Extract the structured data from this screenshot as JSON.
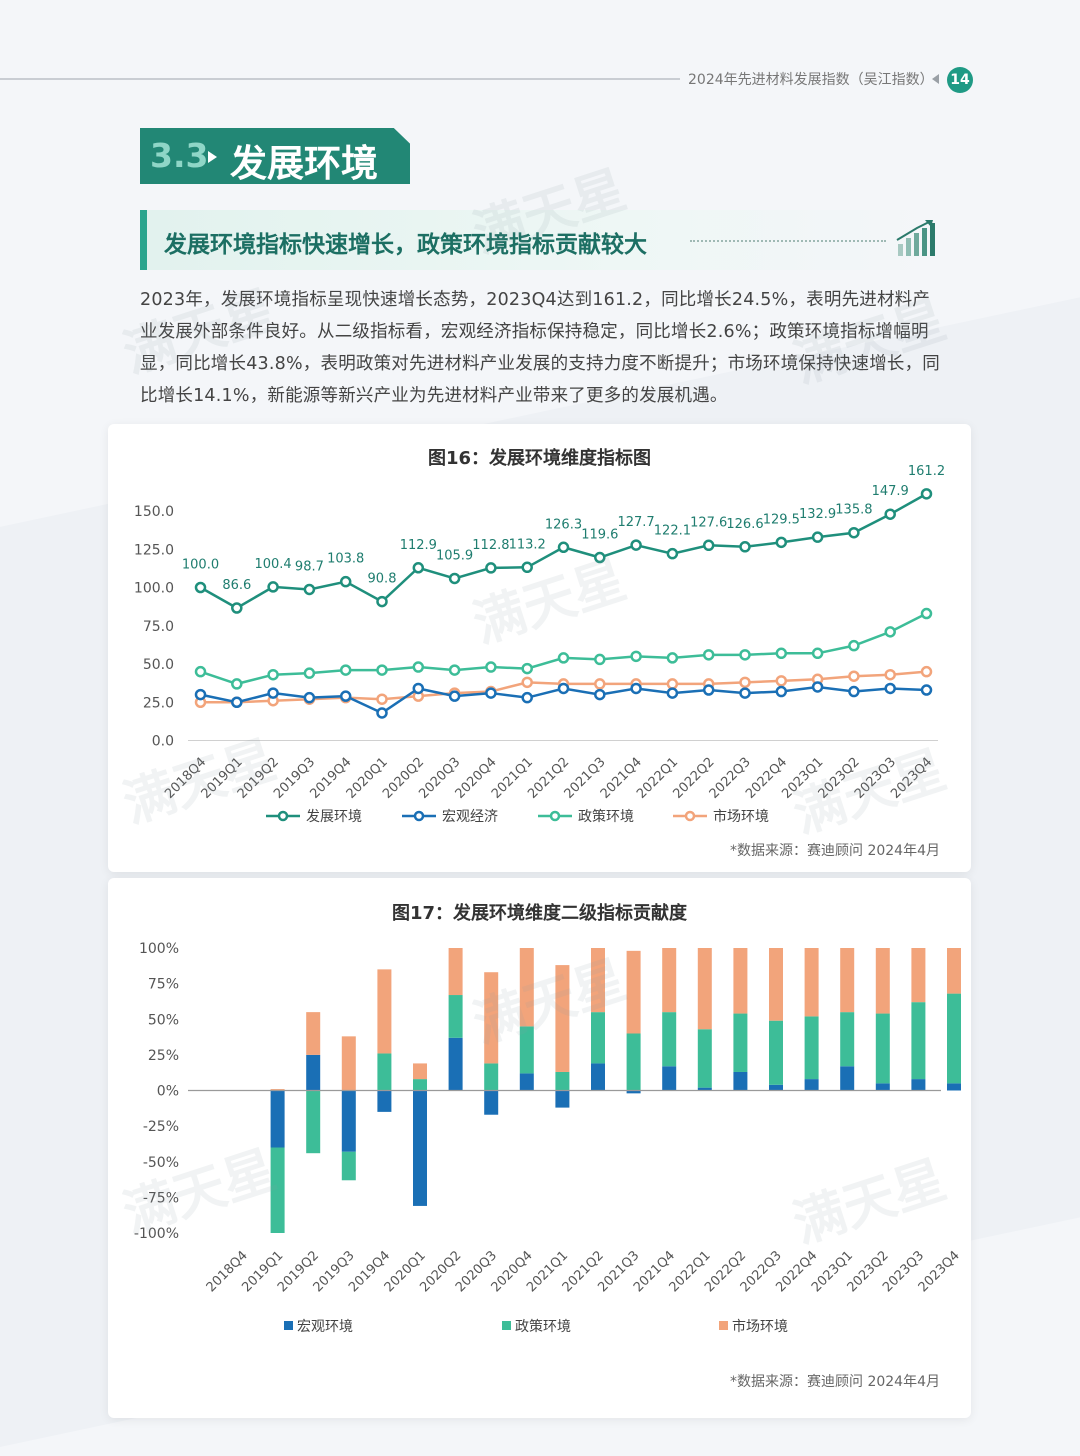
{
  "header": {
    "title": "2024年先进材料发展指数（吴江指数）",
    "page_number": "14"
  },
  "section": {
    "number": "3.3",
    "title": "发展环境"
  },
  "subheading": "发展环境指标快速增长，政策环境指标贡献较大",
  "paragraph": "2023年，发展环境指标呈现快速增长态势，2023Q4达到161.2，同比增长24.5%，表明先进材料产业发展外部条件良好。从二级指标看，宏观经济指标保持稳定，同比增长2.6%；政策环境指标增幅明显，同比增长43.8%，表明政策对先进材料产业发展的支持力度不断提升；市场环境保持快速增长，同比增长14.1%，新能源等新兴产业为先进材料产业带来了更多的发展机遇。",
  "watermark": "满天星",
  "colors": {
    "accent": "#228775",
    "dev": "#1f8f7c",
    "macro": "#1a6fb5",
    "policy": "#3dbd98",
    "market": "#f2a47b"
  },
  "chart_data": [
    {
      "type": "line",
      "title": "图16：发展环境维度指标图",
      "source": "*数据来源：赛迪顾问 2024年4月",
      "ylim": [
        0,
        150
      ],
      "yticks": [
        "0.0",
        "25.0",
        "50.0",
        "75.0",
        "100.0",
        "125.0",
        "150.0"
      ],
      "categories": [
        "2018Q4",
        "2019Q1",
        "2019Q2",
        "2019Q3",
        "2019Q4",
        "2020Q1",
        "2020Q2",
        "2020Q3",
        "2020Q4",
        "2021Q1",
        "2021Q2",
        "2021Q3",
        "2021Q4",
        "2022Q1",
        "2022Q2",
        "2022Q3",
        "2022Q4",
        "2023Q1",
        "2023Q2",
        "2023Q3",
        "2023Q4"
      ],
      "series": [
        {
          "name": "发展环境",
          "labels_shown": true,
          "values": [
            100.0,
            86.6,
            100.4,
            98.7,
            103.8,
            90.8,
            112.9,
            105.9,
            112.8,
            113.2,
            126.3,
            119.6,
            127.7,
            122.1,
            127.6,
            126.6,
            129.5,
            132.9,
            135.8,
            147.9,
            161.2
          ],
          "labels": [
            "100.0",
            "86.6",
            "100.4",
            "98.7",
            "103.8",
            "90.8",
            "112.9",
            "105.9",
            "112.8",
            "113.2",
            "126.3",
            "119.6",
            "127.7",
            "122.1",
            "127.6",
            "126.6",
            "129.5",
            "132.9",
            "135.8",
            "147.9",
            "161.2"
          ]
        },
        {
          "name": "宏观经济",
          "values": [
            30,
            25,
            31,
            28,
            29,
            18,
            34,
            29,
            31,
            28,
            34,
            30,
            34,
            31,
            33,
            31,
            32,
            35,
            32,
            34,
            33
          ]
        },
        {
          "name": "政策环境",
          "values": [
            45,
            37,
            43,
            44,
            46,
            46,
            48,
            46,
            48,
            47,
            54,
            53,
            55,
            54,
            56,
            56,
            57,
            57,
            62,
            71,
            83
          ]
        },
        {
          "name": "市场环境",
          "values": [
            25,
            25,
            26,
            27,
            28,
            27,
            29,
            31,
            32,
            38,
            37,
            37,
            37,
            37,
            37,
            38,
            39,
            40,
            42,
            43,
            45
          ]
        }
      ],
      "legend": "bottom"
    },
    {
      "type": "bar",
      "title": "图17：发展环境维度二级指标贡献度",
      "source": "*数据来源：赛迪顾问 2024年4月",
      "ylim": [
        -100,
        100
      ],
      "yticks": [
        "-100%",
        "-75%",
        "-50%",
        "-25%",
        "0%",
        "25%",
        "50%",
        "75%",
        "100%"
      ],
      "categories": [
        "2018Q4",
        "2019Q1",
        "2019Q2",
        "2019Q3",
        "2019Q4",
        "2020Q1",
        "2020Q2",
        "2020Q3",
        "2020Q4",
        "2021Q1",
        "2021Q2",
        "2021Q3",
        "2021Q4",
        "2022Q1",
        "2022Q2",
        "2022Q3",
        "2022Q4",
        "2023Q1",
        "2023Q2",
        "2023Q3",
        "2023Q4"
      ],
      "series": [
        {
          "name": "宏观环境",
          "values": [
            0,
            -40,
            25,
            -43,
            -15,
            -81,
            37,
            -17,
            12,
            -12,
            19,
            -2,
            17,
            2,
            13,
            4,
            8,
            17,
            5,
            8,
            5
          ]
        },
        {
          "name": "政策环境",
          "values": [
            0,
            -60,
            -44,
            -20,
            26,
            8,
            30,
            19,
            33,
            13,
            36,
            40,
            38,
            41,
            41,
            45,
            44,
            38,
            49,
            54,
            63
          ]
        },
        {
          "name": "市场环境",
          "values": [
            0,
            1,
            30,
            38,
            59,
            11,
            33,
            64,
            55,
            75,
            45,
            58,
            45,
            57,
            46,
            51,
            48,
            45,
            46,
            38,
            32
          ]
        }
      ],
      "stacked": true,
      "legend": "bottom"
    }
  ]
}
